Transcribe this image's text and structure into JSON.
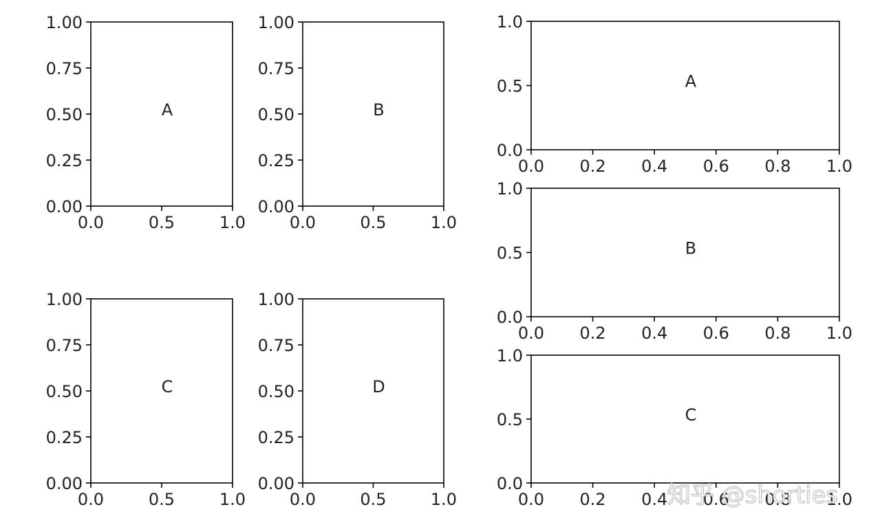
{
  "watermark": "知乎 @shorties",
  "chart_data": [
    {
      "type": "subplot",
      "text": "A",
      "xlim": [
        0,
        1
      ],
      "ylim": [
        0,
        1
      ],
      "xticks": [
        "0.0",
        "0.5",
        "1.0"
      ],
      "yticks": [
        "0.00",
        "0.25",
        "0.50",
        "0.75",
        "1.00"
      ]
    },
    {
      "type": "subplot",
      "text": "B",
      "xlim": [
        0,
        1
      ],
      "ylim": [
        0,
        1
      ],
      "xticks": [
        "0.0",
        "0.5",
        "1.0"
      ],
      "yticks": [
        "0.00",
        "0.25",
        "0.50",
        "0.75",
        "1.00"
      ]
    },
    {
      "type": "subplot",
      "text": "C",
      "xlim": [
        0,
        1
      ],
      "ylim": [
        0,
        1
      ],
      "xticks": [
        "0.0",
        "0.5",
        "1.0"
      ],
      "yticks": [
        "0.00",
        "0.25",
        "0.50",
        "0.75",
        "1.00"
      ]
    },
    {
      "type": "subplot",
      "text": "D",
      "xlim": [
        0,
        1
      ],
      "ylim": [
        0,
        1
      ],
      "xticks": [
        "0.0",
        "0.5",
        "1.0"
      ],
      "yticks": [
        "0.00",
        "0.25",
        "0.50",
        "0.75",
        "1.00"
      ]
    },
    {
      "type": "subplot",
      "text": "A",
      "xlim": [
        0,
        1
      ],
      "ylim": [
        0,
        1
      ],
      "xticks": [
        "0.0",
        "0.2",
        "0.4",
        "0.6",
        "0.8",
        "1.0"
      ],
      "yticks": [
        "0.0",
        "0.5",
        "1.0"
      ]
    },
    {
      "type": "subplot",
      "text": "B",
      "xlim": [
        0,
        1
      ],
      "ylim": [
        0,
        1
      ],
      "xticks": [
        "0.0",
        "0.2",
        "0.4",
        "0.6",
        "0.8",
        "1.0"
      ],
      "yticks": [
        "0.0",
        "0.5",
        "1.0"
      ]
    },
    {
      "type": "subplot",
      "text": "C",
      "xlim": [
        0,
        1
      ],
      "ylim": [
        0,
        1
      ],
      "xticks": [
        "0.0",
        "0.2",
        "0.4",
        "0.6",
        "0.8",
        "1.0"
      ],
      "yticks": [
        "0.0",
        "0.5",
        "1.0"
      ]
    }
  ]
}
